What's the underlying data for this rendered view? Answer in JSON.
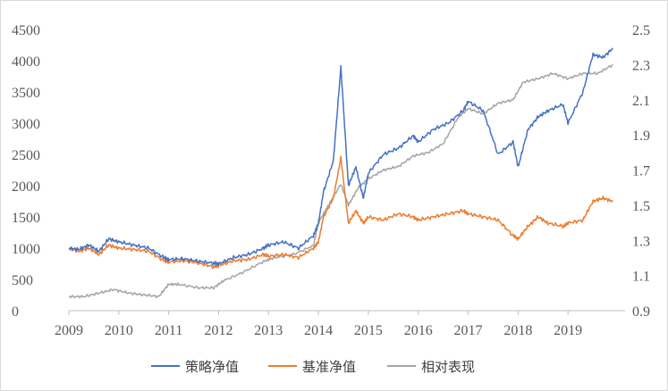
{
  "chart_data": {
    "type": "line",
    "title": "",
    "xlabel": "",
    "ylabel": "",
    "grid": false,
    "legend_position": "bottom",
    "x_ticks": [
      "2009",
      "2010",
      "2011",
      "2012",
      "2013",
      "2014",
      "2015",
      "2016",
      "2017",
      "2018",
      "2019"
    ],
    "y_left_ticks": [
      "0",
      "500",
      "1000",
      "1500",
      "2000",
      "2500",
      "3000",
      "3500",
      "4000",
      "4500"
    ],
    "y_right_ticks": [
      "0.9",
      "1.1",
      "1.3",
      "1.5",
      "1.7",
      "1.9",
      "2.1",
      "2.3",
      "2.5"
    ],
    "ylim_left": [
      0,
      4500
    ],
    "ylim_right": [
      0.9,
      2.5
    ],
    "series": [
      {
        "name": "策略净值",
        "axis": "left",
        "color": "#4472C4",
        "x": [
          2009.0,
          2009.2,
          2009.4,
          2009.6,
          2009.8,
          2010.0,
          2010.3,
          2010.6,
          2010.9,
          2011.0,
          2011.3,
          2011.6,
          2011.9,
          2012.0,
          2012.3,
          2012.6,
          2012.9,
          2013.0,
          2013.3,
          2013.6,
          2013.9,
          2014.0,
          2014.1,
          2014.3,
          2014.45,
          2014.6,
          2014.75,
          2014.9,
          2015.0,
          2015.3,
          2015.6,
          2015.9,
          2016.0,
          2016.3,
          2016.6,
          2016.9,
          2017.0,
          2017.3,
          2017.6,
          2017.9,
          2018.0,
          2018.2,
          2018.4,
          2018.6,
          2018.9,
          2019.0,
          2019.3,
          2019.5,
          2019.7,
          2019.9
        ],
        "y": [
          1000,
          980,
          1050,
          950,
          1150,
          1100,
          1050,
          1000,
          850,
          820,
          830,
          790,
          760,
          750,
          850,
          900,
          1000,
          1050,
          1100,
          1000,
          1200,
          1400,
          1900,
          2400,
          3900,
          2000,
          2300,
          1800,
          2200,
          2500,
          2600,
          2800,
          2700,
          2900,
          3000,
          3200,
          3350,
          3200,
          2500,
          2700,
          2300,
          2900,
          3100,
          3200,
          3300,
          3000,
          3500,
          4100,
          4050,
          4200
        ]
      },
      {
        "name": "基准净值",
        "axis": "left",
        "color": "#ED7D31",
        "x": [
          2009.0,
          2009.2,
          2009.4,
          2009.6,
          2009.8,
          2010.0,
          2010.3,
          2010.6,
          2010.9,
          2011.0,
          2011.3,
          2011.6,
          2011.9,
          2012.0,
          2012.3,
          2012.6,
          2012.9,
          2013.0,
          2013.3,
          2013.6,
          2013.9,
          2014.0,
          2014.1,
          2014.3,
          2014.45,
          2014.6,
          2014.75,
          2014.9,
          2015.0,
          2015.3,
          2015.6,
          2015.9,
          2016.0,
          2016.3,
          2016.6,
          2016.9,
          2017.0,
          2017.3,
          2017.6,
          2017.9,
          2018.0,
          2018.2,
          2018.4,
          2018.6,
          2018.9,
          2019.0,
          2019.3,
          2019.5,
          2019.7,
          2019.9
        ],
        "y": [
          1000,
          950,
          1000,
          900,
          1050,
          1000,
          980,
          950,
          800,
          780,
          800,
          760,
          700,
          720,
          800,
          820,
          900,
          870,
          900,
          850,
          1000,
          1100,
          1500,
          1800,
          2450,
          1400,
          1600,
          1400,
          1500,
          1450,
          1550,
          1500,
          1450,
          1500,
          1550,
          1600,
          1550,
          1500,
          1450,
          1200,
          1150,
          1350,
          1500,
          1400,
          1350,
          1400,
          1450,
          1750,
          1800,
          1750
        ]
      },
      {
        "name": "相对表现",
        "axis": "right",
        "color": "#A5A5A5",
        "x": [
          2009.0,
          2009.3,
          2009.6,
          2009.9,
          2010.2,
          2010.5,
          2010.8,
          2011.0,
          2011.2,
          2011.6,
          2011.9,
          2012.1,
          2012.5,
          2012.9,
          2013.1,
          2013.5,
          2013.9,
          2014.0,
          2014.2,
          2014.45,
          2014.6,
          2014.8,
          2015.0,
          2015.3,
          2015.6,
          2015.9,
          2016.2,
          2016.5,
          2016.8,
          2017.0,
          2017.3,
          2017.6,
          2017.9,
          2018.1,
          2018.4,
          2018.7,
          2019.0,
          2019.3,
          2019.6,
          2019.9
        ],
        "y": [
          0.98,
          0.98,
          1.0,
          1.02,
          1.0,
          0.99,
          0.98,
          1.05,
          1.05,
          1.03,
          1.03,
          1.07,
          1.12,
          1.18,
          1.2,
          1.22,
          1.27,
          1.4,
          1.5,
          1.62,
          1.5,
          1.6,
          1.65,
          1.7,
          1.72,
          1.78,
          1.8,
          1.85,
          2.0,
          2.05,
          2.02,
          2.08,
          2.1,
          2.2,
          2.22,
          2.25,
          2.22,
          2.25,
          2.25,
          2.3
        ]
      }
    ]
  }
}
